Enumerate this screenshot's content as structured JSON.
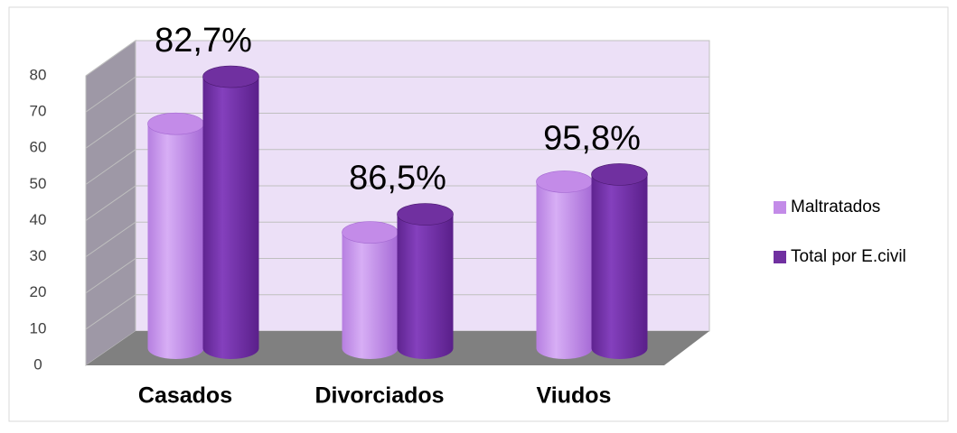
{
  "chart_data": {
    "type": "bar3d",
    "categories": [
      "Casados",
      "Divorciados",
      "Viudos"
    ],
    "series": [
      {
        "name": "Maltratados",
        "color": "#c38be8",
        "values": [
          62,
          32,
          46
        ]
      },
      {
        "name": "Total por E.civil",
        "color": "#7030a0",
        "values": [
          75,
          37,
          48
        ]
      }
    ],
    "annotations": [
      "82,7%",
      "86,5%",
      "95,8%"
    ],
    "ylim": [
      0,
      80
    ],
    "yticks": [
      0,
      10,
      20,
      30,
      40,
      50,
      60,
      70,
      80
    ],
    "grid": true,
    "legend": "right"
  }
}
